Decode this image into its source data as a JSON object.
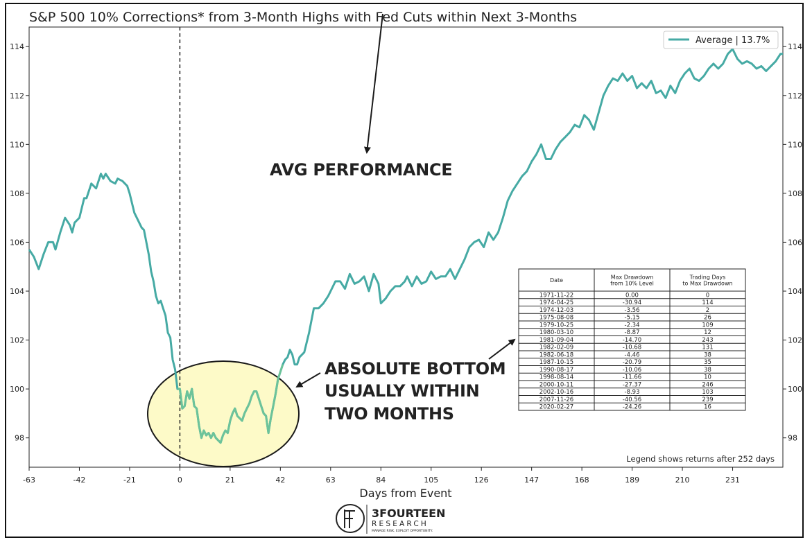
{
  "chart_data": {
    "type": "line",
    "title": "S&P 500 10% Corrections* from 3-Month Highs with Fed Cuts within Next 3-Months",
    "xlabel": "Days from Event",
    "ylabel": "",
    "xlim": [
      -63,
      252
    ],
    "ylim": [
      96.8,
      114.8
    ],
    "x_ticks": [
      -63,
      -42,
      -21,
      0,
      21,
      42,
      63,
      84,
      105,
      126,
      147,
      168,
      189,
      210,
      231
    ],
    "x_tick_labels": [
      "-63",
      "-42",
      "-21",
      "0",
      "21",
      "42",
      "63",
      "84",
      "105",
      "126",
      "147",
      "168",
      "189",
      "210",
      "231"
    ],
    "y_ticks": [
      98,
      100,
      102,
      104,
      106,
      108,
      110,
      112,
      114
    ],
    "y_tick_labels": [
      "98",
      "100",
      "102",
      "104",
      "106",
      "108",
      "110",
      "112",
      "114"
    ],
    "event_line_x": 0,
    "series": [
      {
        "name": "Average | 13.7%",
        "color": "#46aaa4",
        "highlight_color": "#6cc39a",
        "points": [
          [
            -63,
            105.7
          ],
          [
            -61,
            105.4
          ],
          [
            -59,
            104.9
          ],
          [
            -57,
            105.5
          ],
          [
            -55,
            106.0
          ],
          [
            -53,
            106.0
          ],
          [
            -52,
            105.7
          ],
          [
            -50,
            106.4
          ],
          [
            -48,
            107.0
          ],
          [
            -46,
            106.7
          ],
          [
            -45,
            106.4
          ],
          [
            -44,
            106.8
          ],
          [
            -42,
            107.0
          ],
          [
            -40,
            107.8
          ],
          [
            -39,
            107.8
          ],
          [
            -37,
            108.4
          ],
          [
            -35,
            108.2
          ],
          [
            -33,
            108.8
          ],
          [
            -32,
            108.6
          ],
          [
            -31,
            108.8
          ],
          [
            -29,
            108.5
          ],
          [
            -27,
            108.4
          ],
          [
            -26,
            108.6
          ],
          [
            -24,
            108.5
          ],
          [
            -22,
            108.3
          ],
          [
            -21,
            108.0
          ],
          [
            -19,
            107.2
          ],
          [
            -18,
            107.0
          ],
          [
            -16,
            106.6
          ],
          [
            -15,
            106.5
          ],
          [
            -13,
            105.5
          ],
          [
            -12,
            104.8
          ],
          [
            -11,
            104.4
          ],
          [
            -10,
            103.8
          ],
          [
            -9,
            103.5
          ],
          [
            -8,
            103.6
          ],
          [
            -7,
            103.3
          ],
          [
            -6,
            103.0
          ],
          [
            -5,
            102.3
          ],
          [
            -4,
            102.1
          ],
          [
            -3,
            101.2
          ],
          [
            -2,
            100.8
          ],
          [
            -1,
            100.0
          ],
          [
            0,
            100.0
          ],
          [
            1,
            99.2
          ],
          [
            2,
            99.3
          ],
          [
            3,
            99.9
          ],
          [
            4,
            99.6
          ],
          [
            5,
            100.0
          ],
          [
            6,
            99.3
          ],
          [
            7,
            99.2
          ],
          [
            8,
            98.5
          ],
          [
            9,
            98.0
          ],
          [
            10,
            98.3
          ],
          [
            11,
            98.1
          ],
          [
            12,
            98.2
          ],
          [
            13,
            98.0
          ],
          [
            14,
            98.2
          ],
          [
            15,
            98.0
          ],
          [
            16,
            97.9
          ],
          [
            17,
            97.8
          ],
          [
            18,
            98.1
          ],
          [
            19,
            98.3
          ],
          [
            20,
            98.2
          ],
          [
            21,
            98.7
          ],
          [
            22,
            99.0
          ],
          [
            23,
            99.2
          ],
          [
            24,
            98.9
          ],
          [
            25,
            98.8
          ],
          [
            26,
            98.7
          ],
          [
            27,
            99.0
          ],
          [
            28,
            99.2
          ],
          [
            29,
            99.4
          ],
          [
            30,
            99.7
          ],
          [
            31,
            99.9
          ],
          [
            32,
            99.9
          ],
          [
            33,
            99.6
          ],
          [
            34,
            99.3
          ],
          [
            35,
            99.0
          ],
          [
            36,
            98.9
          ],
          [
            37,
            98.2
          ],
          [
            38,
            98.8
          ],
          [
            39,
            99.3
          ],
          [
            40,
            99.8
          ],
          [
            41,
            100.4
          ],
          [
            42,
            100.7
          ],
          [
            43,
            101.0
          ],
          [
            44,
            101.2
          ],
          [
            45,
            101.3
          ],
          [
            46,
            101.6
          ],
          [
            47,
            101.4
          ],
          [
            48,
            101.0
          ],
          [
            49,
            101.0
          ],
          [
            50,
            101.3
          ],
          [
            52,
            101.5
          ],
          [
            54,
            102.3
          ],
          [
            56,
            103.3
          ],
          [
            58,
            103.3
          ],
          [
            60,
            103.5
          ],
          [
            62,
            103.8
          ],
          [
            63,
            104.0
          ],
          [
            65,
            104.4
          ],
          [
            67,
            104.4
          ],
          [
            69,
            104.1
          ],
          [
            71,
            104.7
          ],
          [
            73,
            104.3
          ],
          [
            75,
            104.4
          ],
          [
            77,
            104.6
          ],
          [
            79,
            104.0
          ],
          [
            81,
            104.7
          ],
          [
            83,
            104.3
          ],
          [
            84,
            103.5
          ],
          [
            86,
            103.7
          ],
          [
            88,
            104.0
          ],
          [
            90,
            104.2
          ],
          [
            92,
            104.2
          ],
          [
            94,
            104.4
          ],
          [
            95,
            104.6
          ],
          [
            97,
            104.2
          ],
          [
            99,
            104.6
          ],
          [
            101,
            104.3
          ],
          [
            103,
            104.4
          ],
          [
            105,
            104.8
          ],
          [
            107,
            104.5
          ],
          [
            109,
            104.6
          ],
          [
            111,
            104.6
          ],
          [
            113,
            104.9
          ],
          [
            115,
            104.5
          ],
          [
            117,
            104.9
          ],
          [
            119,
            105.3
          ],
          [
            121,
            105.8
          ],
          [
            123,
            106.0
          ],
          [
            125,
            106.1
          ],
          [
            127,
            105.8
          ],
          [
            129,
            106.4
          ],
          [
            131,
            106.1
          ],
          [
            133,
            106.4
          ],
          [
            135,
            107.0
          ],
          [
            137,
            107.7
          ],
          [
            139,
            108.1
          ],
          [
            141,
            108.4
          ],
          [
            143,
            108.7
          ],
          [
            145,
            108.9
          ],
          [
            147,
            109.3
          ],
          [
            149,
            109.6
          ],
          [
            151,
            110.0
          ],
          [
            153,
            109.4
          ],
          [
            155,
            109.4
          ],
          [
            157,
            109.8
          ],
          [
            159,
            110.1
          ],
          [
            161,
            110.3
          ],
          [
            163,
            110.5
          ],
          [
            165,
            110.8
          ],
          [
            167,
            110.7
          ],
          [
            169,
            111.2
          ],
          [
            171,
            111.0
          ],
          [
            173,
            110.6
          ],
          [
            175,
            111.3
          ],
          [
            177,
            112.0
          ],
          [
            179,
            112.4
          ],
          [
            181,
            112.7
          ],
          [
            183,
            112.6
          ],
          [
            185,
            112.9
          ],
          [
            187,
            112.6
          ],
          [
            189,
            112.8
          ],
          [
            191,
            112.3
          ],
          [
            193,
            112.5
          ],
          [
            195,
            112.3
          ],
          [
            197,
            112.6
          ],
          [
            199,
            112.1
          ],
          [
            201,
            112.2
          ],
          [
            203,
            111.9
          ],
          [
            205,
            112.4
          ],
          [
            207,
            112.1
          ],
          [
            209,
            112.6
          ],
          [
            211,
            112.9
          ],
          [
            213,
            113.1
          ],
          [
            215,
            112.7
          ],
          [
            217,
            112.6
          ],
          [
            219,
            112.8
          ],
          [
            221,
            113.1
          ],
          [
            223,
            113.3
          ],
          [
            225,
            113.1
          ],
          [
            227,
            113.3
          ],
          [
            229,
            113.7
          ],
          [
            231,
            113.9
          ],
          [
            233,
            113.5
          ],
          [
            235,
            113.3
          ],
          [
            237,
            113.4
          ],
          [
            239,
            113.3
          ],
          [
            241,
            113.1
          ],
          [
            243,
            113.2
          ],
          [
            245,
            113.0
          ],
          [
            247,
            113.2
          ],
          [
            249,
            113.4
          ],
          [
            251,
            113.7
          ],
          [
            252,
            113.7
          ]
        ]
      }
    ],
    "legend": {
      "position": "top-right",
      "entries": [
        "Average | 13.7%"
      ]
    },
    "annotations": [
      "AVG PERFORMANCE",
      "ABSOLUTE BOTTOM",
      "USUALLY WITHIN",
      "TWO MONTHS"
    ],
    "note": "Legend shows returns after 252 days",
    "table": {
      "headers": [
        [
          "Date"
        ],
        [
          "Max Drawdown",
          "from 10% Level"
        ],
        [
          "Trading Days",
          "to Max Drawdown"
        ]
      ],
      "rows": [
        [
          "1971-11-22",
          "0.00",
          "0"
        ],
        [
          "1974-04-25",
          "-30.94",
          "114"
        ],
        [
          "1974-12-03",
          "-3.56",
          "2"
        ],
        [
          "1975-08-08",
          "-5.15",
          "26"
        ],
        [
          "1979-10-25",
          "-2.34",
          "109"
        ],
        [
          "1980-03-10",
          "-8.87",
          "12"
        ],
        [
          "1981-09-04",
          "-14.70",
          "243"
        ],
        [
          "1982-02-09",
          "-10.68",
          "131"
        ],
        [
          "1982-06-18",
          "-4.46",
          "38"
        ],
        [
          "1987-10-15",
          "-20.79",
          "35"
        ],
        [
          "1990-08-17",
          "-10.06",
          "38"
        ],
        [
          "1998-08-14",
          "-11.66",
          "10"
        ],
        [
          "2000-10-11",
          "-27.37",
          "246"
        ],
        [
          "2002-10-16",
          "-8.93",
          "103"
        ],
        [
          "2007-11-26",
          "-40.56",
          "239"
        ],
        [
          "2020-02-27",
          "-24.26",
          "16"
        ]
      ]
    }
  },
  "branding": {
    "name": "3FOURTEEN",
    "sub": "RESEARCH",
    "tagline": "MANAGE RISK. EXPLOIT OPPORTUNITY."
  },
  "colors": {
    "line": "#46aaa4",
    "ellipse_fill": "#fdfac8",
    "axes": "#222222"
  }
}
